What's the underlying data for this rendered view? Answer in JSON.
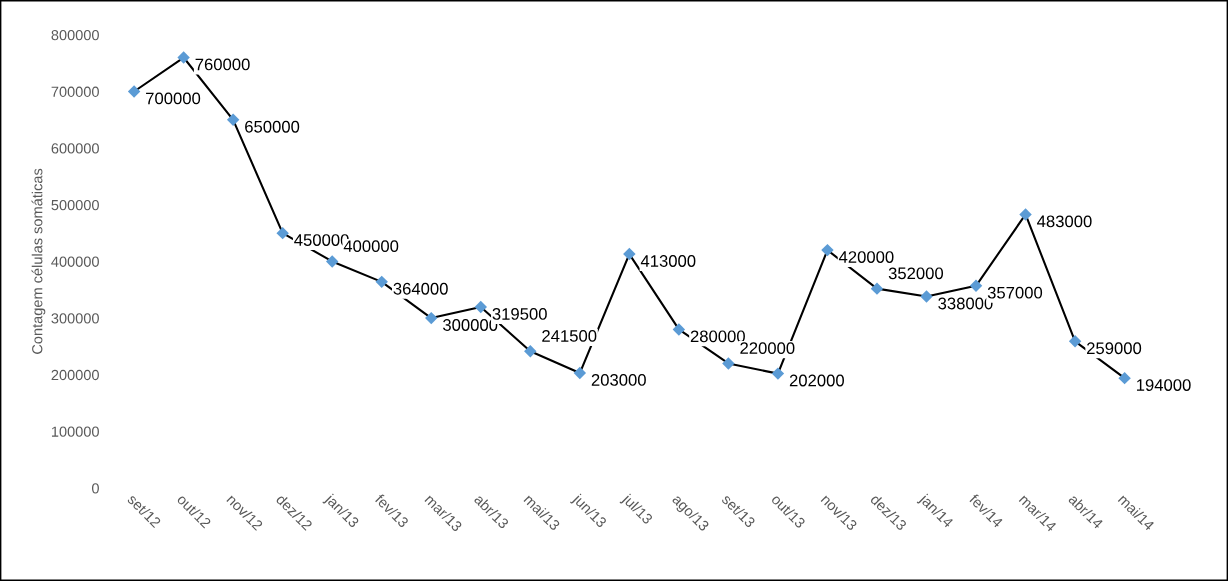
{
  "chart_data": {
    "type": "line",
    "ylabel": "Contagem células somáticas",
    "categories": [
      "set/12",
      "out/12",
      "nov/12",
      "dez/12",
      "jan/13",
      "fev/13",
      "mar/13",
      "abr/13",
      "mai/13",
      "jun/13",
      "jul/13",
      "ago/13",
      "set/13",
      "out/13",
      "nov/13",
      "dez/13",
      "jan/14",
      "fev/14",
      "mar/14",
      "abr/14",
      "mai/14"
    ],
    "series": [
      {
        "color": "#5b9bd5",
        "values": [
          700000,
          760000,
          650000,
          450000,
          400000,
          364000,
          300000,
          319500,
          241500,
          203000,
          413000,
          280000,
          220000,
          202000,
          420000,
          352000,
          338000,
          357000,
          483000,
          259000,
          194000
        ]
      }
    ],
    "ylim": [
      0,
      800000
    ],
    "yticks": [
      0,
      100000,
      200000,
      300000,
      400000,
      500000,
      600000,
      700000,
      800000
    ],
    "marker": "diamond",
    "line_style": "solid",
    "data_labels": true,
    "grid": false
  }
}
